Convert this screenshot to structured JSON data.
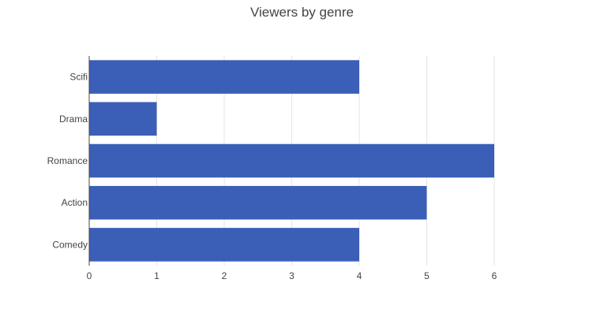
{
  "chart_data": {
    "type": "bar",
    "orientation": "horizontal",
    "title": "Viewers by genre",
    "xlabel": "",
    "ylabel": "",
    "categories": [
      "Comedy",
      "Action",
      "Romance",
      "Drama",
      "Scifi"
    ],
    "values": [
      4,
      5,
      6,
      1,
      4
    ],
    "xlim": [
      0,
      6
    ],
    "x_ticks": [
      "0",
      "1",
      "2",
      "3",
      "4",
      "5",
      "6"
    ],
    "grid": "vertical",
    "legend": "none",
    "colors": {
      "bar": "#3B5FB7",
      "grid": "#E5E5E5",
      "axis": "#444444"
    }
  }
}
